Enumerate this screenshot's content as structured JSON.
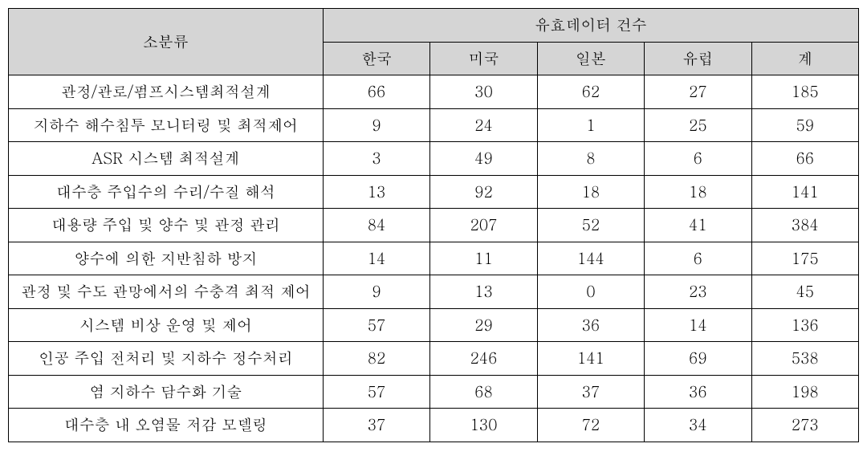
{
  "table": {
    "headers": {
      "category": "소분류",
      "dataGroup": "유효데이터 건수",
      "columns": [
        "한국",
        "미국",
        "일본",
        "유럽",
        "계"
      ]
    },
    "rows": [
      {
        "label": "관정/관로/펌프시스템최적설계",
        "values": [
          "66",
          "30",
          "62",
          "27",
          "185"
        ]
      },
      {
        "label": "지하수 해수침투 모니터링 및 최적제어",
        "values": [
          "9",
          "24",
          "1",
          "25",
          "59"
        ]
      },
      {
        "label": "ASR 시스템 최적설계",
        "values": [
          "3",
          "49",
          "8",
          "6",
          "66"
        ]
      },
      {
        "label": "대수층 주입수의 수리/수질 해석",
        "values": [
          "13",
          "92",
          "18",
          "18",
          "141"
        ]
      },
      {
        "label": "대용량 주입 및 양수 및 관정 관리",
        "values": [
          "84",
          "207",
          "52",
          "41",
          "384"
        ]
      },
      {
        "label": "양수에 의한 지반침하 방지",
        "values": [
          "14",
          "11",
          "144",
          "6",
          "175"
        ]
      },
      {
        "label": "관정 및 수도 관망에서의 수충격 최적 제어",
        "values": [
          "9",
          "13",
          "0",
          "23",
          "45"
        ]
      },
      {
        "label": "시스템 비상 운영 및 제어",
        "values": [
          "57",
          "29",
          "36",
          "14",
          "136"
        ]
      },
      {
        "label": "인공 주입 전처리 및 지하수 정수처리",
        "values": [
          "82",
          "246",
          "141",
          "69",
          "538"
        ]
      },
      {
        "label": "염 지하수 담수화 기술",
        "values": [
          "57",
          "68",
          "37",
          "36",
          "198"
        ]
      },
      {
        "label": "대수층 내 오염물 저감 모델링",
        "values": [
          "37",
          "130",
          "72",
          "34",
          "273"
        ]
      }
    ]
  },
  "styling": {
    "header_bg_color": "#d5d5d5",
    "border_color": "#000000",
    "text_color": "#000000",
    "background_color": "#ffffff",
    "font_size": 19,
    "border_width": 1.5
  }
}
